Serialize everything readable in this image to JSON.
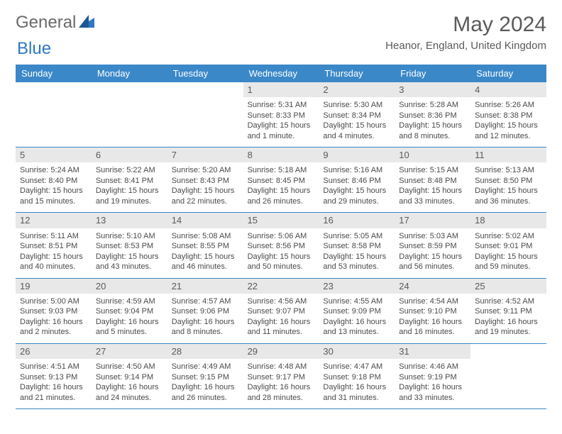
{
  "logo": {
    "part1": "General",
    "part2": "Blue"
  },
  "title": "May 2024",
  "location": "Heanor, England, United Kingdom",
  "colors": {
    "header_bg": "#3b88c8",
    "header_text": "#ffffff",
    "daynum_bg": "#e8e8e8",
    "text": "#4a4a4a",
    "border": "#3b88c8",
    "background": "#ffffff"
  },
  "weekdays": [
    "Sunday",
    "Monday",
    "Tuesday",
    "Wednesday",
    "Thursday",
    "Friday",
    "Saturday"
  ],
  "weeks": [
    [
      {
        "empty": true
      },
      {
        "empty": true
      },
      {
        "empty": true
      },
      {
        "num": "1",
        "sunrise": "5:31 AM",
        "sunset": "8:33 PM",
        "daylight": "15 hours and 1 minute."
      },
      {
        "num": "2",
        "sunrise": "5:30 AM",
        "sunset": "8:34 PM",
        "daylight": "15 hours and 4 minutes."
      },
      {
        "num": "3",
        "sunrise": "5:28 AM",
        "sunset": "8:36 PM",
        "daylight": "15 hours and 8 minutes."
      },
      {
        "num": "4",
        "sunrise": "5:26 AM",
        "sunset": "8:38 PM",
        "daylight": "15 hours and 12 minutes."
      }
    ],
    [
      {
        "num": "5",
        "sunrise": "5:24 AM",
        "sunset": "8:40 PM",
        "daylight": "15 hours and 15 minutes."
      },
      {
        "num": "6",
        "sunrise": "5:22 AM",
        "sunset": "8:41 PM",
        "daylight": "15 hours and 19 minutes."
      },
      {
        "num": "7",
        "sunrise": "5:20 AM",
        "sunset": "8:43 PM",
        "daylight": "15 hours and 22 minutes."
      },
      {
        "num": "8",
        "sunrise": "5:18 AM",
        "sunset": "8:45 PM",
        "daylight": "15 hours and 26 minutes."
      },
      {
        "num": "9",
        "sunrise": "5:16 AM",
        "sunset": "8:46 PM",
        "daylight": "15 hours and 29 minutes."
      },
      {
        "num": "10",
        "sunrise": "5:15 AM",
        "sunset": "8:48 PM",
        "daylight": "15 hours and 33 minutes."
      },
      {
        "num": "11",
        "sunrise": "5:13 AM",
        "sunset": "8:50 PM",
        "daylight": "15 hours and 36 minutes."
      }
    ],
    [
      {
        "num": "12",
        "sunrise": "5:11 AM",
        "sunset": "8:51 PM",
        "daylight": "15 hours and 40 minutes."
      },
      {
        "num": "13",
        "sunrise": "5:10 AM",
        "sunset": "8:53 PM",
        "daylight": "15 hours and 43 minutes."
      },
      {
        "num": "14",
        "sunrise": "5:08 AM",
        "sunset": "8:55 PM",
        "daylight": "15 hours and 46 minutes."
      },
      {
        "num": "15",
        "sunrise": "5:06 AM",
        "sunset": "8:56 PM",
        "daylight": "15 hours and 50 minutes."
      },
      {
        "num": "16",
        "sunrise": "5:05 AM",
        "sunset": "8:58 PM",
        "daylight": "15 hours and 53 minutes."
      },
      {
        "num": "17",
        "sunrise": "5:03 AM",
        "sunset": "8:59 PM",
        "daylight": "15 hours and 56 minutes."
      },
      {
        "num": "18",
        "sunrise": "5:02 AM",
        "sunset": "9:01 PM",
        "daylight": "15 hours and 59 minutes."
      }
    ],
    [
      {
        "num": "19",
        "sunrise": "5:00 AM",
        "sunset": "9:03 PM",
        "daylight": "16 hours and 2 minutes."
      },
      {
        "num": "20",
        "sunrise": "4:59 AM",
        "sunset": "9:04 PM",
        "daylight": "16 hours and 5 minutes."
      },
      {
        "num": "21",
        "sunrise": "4:57 AM",
        "sunset": "9:06 PM",
        "daylight": "16 hours and 8 minutes."
      },
      {
        "num": "22",
        "sunrise": "4:56 AM",
        "sunset": "9:07 PM",
        "daylight": "16 hours and 11 minutes."
      },
      {
        "num": "23",
        "sunrise": "4:55 AM",
        "sunset": "9:09 PM",
        "daylight": "16 hours and 13 minutes."
      },
      {
        "num": "24",
        "sunrise": "4:54 AM",
        "sunset": "9:10 PM",
        "daylight": "16 hours and 16 minutes."
      },
      {
        "num": "25",
        "sunrise": "4:52 AM",
        "sunset": "9:11 PM",
        "daylight": "16 hours and 19 minutes."
      }
    ],
    [
      {
        "num": "26",
        "sunrise": "4:51 AM",
        "sunset": "9:13 PM",
        "daylight": "16 hours and 21 minutes."
      },
      {
        "num": "27",
        "sunrise": "4:50 AM",
        "sunset": "9:14 PM",
        "daylight": "16 hours and 24 minutes."
      },
      {
        "num": "28",
        "sunrise": "4:49 AM",
        "sunset": "9:15 PM",
        "daylight": "16 hours and 26 minutes."
      },
      {
        "num": "29",
        "sunrise": "4:48 AM",
        "sunset": "9:17 PM",
        "daylight": "16 hours and 28 minutes."
      },
      {
        "num": "30",
        "sunrise": "4:47 AM",
        "sunset": "9:18 PM",
        "daylight": "16 hours and 31 minutes."
      },
      {
        "num": "31",
        "sunrise": "4:46 AM",
        "sunset": "9:19 PM",
        "daylight": "16 hours and 33 minutes."
      },
      {
        "empty": true
      }
    ]
  ],
  "labels": {
    "sunrise": "Sunrise:",
    "sunset": "Sunset:",
    "daylight": "Daylight:"
  }
}
